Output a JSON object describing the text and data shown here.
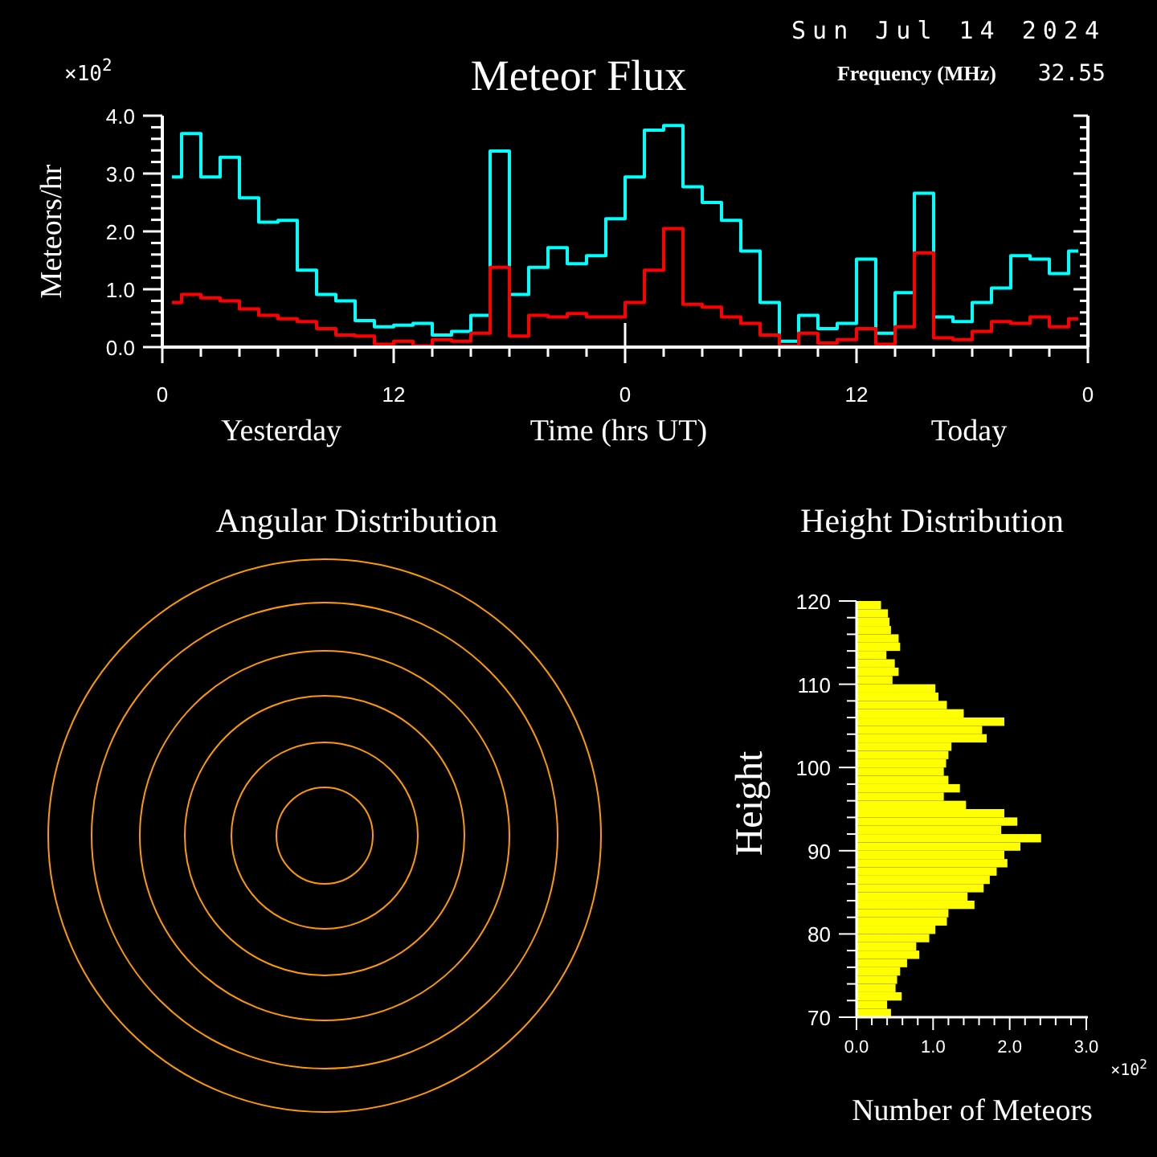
{
  "chart_data": [
    {
      "type": "step",
      "title": "Meteor Flux",
      "xlabel": "Time (hrs UT)",
      "ylabel": "Meteors/hr",
      "annotations": [
        "×10$^{2}$",
        "Sun Jul 14 2024",
        "Frequency (MHz)",
        "32.55",
        "Yesterday",
        "Today"
      ],
      "x": [
        "2024-07-13T00:30",
        "2024-07-13T01:30",
        "2024-07-13T02:30",
        "2024-07-13T03:30",
        "2024-07-13T04:30",
        "2024-07-13T05:30",
        "2024-07-13T06:30",
        "2024-07-13T07:30",
        "2024-07-13T08:30",
        "2024-07-13T09:30",
        "2024-07-13T10:30",
        "2024-07-13T11:30",
        "2024-07-13T12:30",
        "2024-07-13T13:30",
        "2024-07-13T14:30",
        "2024-07-13T15:30",
        "2024-07-13T16:30",
        "2024-07-13T17:30",
        "2024-07-13T18:30",
        "2024-07-13T19:30",
        "2024-07-13T20:30",
        "2024-07-13T21:30",
        "2024-07-13T22:30",
        "2024-07-13T23:30",
        "2024-07-14T00:30",
        "2024-07-14T01:30",
        "2024-07-14T02:30",
        "2024-07-14T03:30",
        "2024-07-14T04:30",
        "2024-07-14T05:30",
        "2024-07-14T06:30",
        "2024-07-14T07:30",
        "2024-07-14T08:30",
        "2024-07-14T09:30",
        "2024-07-14T10:30",
        "2024-07-14T11:30",
        "2024-07-14T12:30",
        "2024-07-14T13:30",
        "2024-07-14T14:30",
        "2024-07-14T15:30",
        "2024-07-14T16:30",
        "2024-07-14T17:30",
        "2024-07-14T18:30",
        "2024-07-14T19:30",
        "2024-07-14T20:30",
        "2024-07-14T21:30",
        "2024-07-14T22:30",
        "2024-07-14T23:30"
      ],
      "series": [
        {
          "color": "#00ffff",
          "values": [
            2.94,
            3.69,
            2.94,
            3.28,
            2.58,
            2.16,
            2.19,
            1.33,
            0.91,
            0.8,
            0.46,
            0.35,
            0.38,
            0.41,
            0.21,
            0.27,
            0.55,
            3.39,
            0.91,
            1.38,
            1.72,
            1.44,
            1.58,
            2.22,
            2.94,
            3.75,
            3.83,
            2.77,
            2.5,
            2.19,
            1.66,
            0.77,
            0.1,
            0.55,
            0.32,
            0.41,
            1.52,
            0.24,
            0.94,
            2.66,
            0.52,
            0.44,
            0.77,
            1.02,
            1.58,
            1.52,
            1.27,
            1.66
          ]
        },
        {
          "color": "#ff0000",
          "values": [
            0.77,
            0.91,
            0.85,
            0.8,
            0.66,
            0.55,
            0.49,
            0.44,
            0.32,
            0.21,
            0.19,
            0.05,
            0.1,
            0.02,
            0.13,
            0.1,
            0.24,
            1.38,
            0.19,
            0.55,
            0.52,
            0.58,
            0.52,
            0.52,
            0.77,
            1.33,
            2.05,
            0.74,
            0.69,
            0.52,
            0.41,
            0.21,
            0.02,
            0.24,
            0.07,
            0.13,
            0.32,
            0.05,
            0.35,
            1.63,
            0.16,
            0.13,
            0.27,
            0.44,
            0.41,
            0.52,
            0.35,
            0.49
          ]
        }
      ],
      "xlim": [
        "2024-07-13T00:00",
        "2024-07-15T00:00"
      ],
      "xticks": [
        {
          "value": "2024-07-13T00:00",
          "label": "0"
        },
        {
          "value": "2024-07-13T02:00",
          "label": null
        },
        {
          "value": "2024-07-13T04:00",
          "label": null
        },
        {
          "value": "2024-07-13T06:00",
          "label": null
        },
        {
          "value": "2024-07-13T08:00",
          "label": null
        },
        {
          "value": "2024-07-13T10:00",
          "label": null
        },
        {
          "value": "2024-07-13T12:00",
          "label": "12"
        },
        {
          "value": "2024-07-13T14:00",
          "label": null
        },
        {
          "value": "2024-07-13T16:00",
          "label": null
        },
        {
          "value": "2024-07-13T18:00",
          "label": null
        },
        {
          "value": "2024-07-13T20:00",
          "label": null
        },
        {
          "value": "2024-07-13T22:00",
          "label": null
        },
        {
          "value": "2024-07-14T00:00",
          "label": "0"
        },
        {
          "value": "2024-07-14T02:00",
          "label": null
        },
        {
          "value": "2024-07-14T04:00",
          "label": null
        },
        {
          "value": "2024-07-14T06:00",
          "label": null
        },
        {
          "value": "2024-07-14T08:00",
          "label": null
        },
        {
          "value": "2024-07-14T10:00",
          "label": null
        },
        {
          "value": "2024-07-14T12:00",
          "label": "12"
        },
        {
          "value": "2024-07-14T14:00",
          "label": null
        },
        {
          "value": "2024-07-14T16:00",
          "label": null
        },
        {
          "value": "2024-07-14T18:00",
          "label": null
        },
        {
          "value": "2024-07-14T20:00",
          "label": null
        },
        {
          "value": "2024-07-14T22:00",
          "label": null
        },
        {
          "value": "2024-07-15T00:00",
          "label": "0"
        }
      ],
      "ylim": [
        0,
        4
      ],
      "yticks": [
        {
          "value": 0,
          "label": "0.0"
        },
        {
          "value": 0.2,
          "label": null
        },
        {
          "value": 0.4,
          "label": null
        },
        {
          "value": 0.6,
          "label": null
        },
        {
          "value": 0.8,
          "label": null
        },
        {
          "value": 1,
          "label": "1.0"
        },
        {
          "value": 1.2,
          "label": null
        },
        {
          "value": 1.4,
          "label": null
        },
        {
          "value": 1.6,
          "label": null
        },
        {
          "value": 1.8,
          "label": null
        },
        {
          "value": 2,
          "label": "2.0"
        },
        {
          "value": 2.2,
          "label": null
        },
        {
          "value": 2.4,
          "label": null
        },
        {
          "value": 2.6,
          "label": null
        },
        {
          "value": 2.8,
          "label": null
        },
        {
          "value": 3,
          "label": "3.0"
        },
        {
          "value": 3.2,
          "label": null
        },
        {
          "value": 3.4,
          "label": null
        },
        {
          "value": 3.6,
          "label": null
        },
        {
          "value": 3.8,
          "label": null
        },
        {
          "value": 4,
          "label": "4.0"
        }
      ],
      "ref_lines": [
        {
          "axis": "x",
          "value": "2024-07-14T00:00",
          "color": "#ffffff"
        }
      ]
    },
    {
      "type": "other",
      "title": "Angular Distribution"
    },
    {
      "type": "histogram",
      "orientation": "horizontal",
      "title": "Height Distribution",
      "xlabel": "Number of Meteors",
      "ylabel": "Height",
      "color": "#ffff00",
      "annotations": [
        "×10$^{2}$"
      ],
      "bins": [
        70,
        71,
        72,
        73,
        74,
        75,
        76,
        77,
        78,
        79,
        80,
        81,
        82,
        83,
        84,
        85,
        86,
        87,
        88,
        89,
        90,
        91,
        92,
        93,
        94,
        95,
        96,
        97,
        98,
        99,
        100,
        101,
        102,
        103,
        104,
        105,
        106,
        107,
        108,
        109,
        110,
        111,
        112,
        113,
        114,
        115,
        116,
        117,
        118,
        119,
        120
      ],
      "values": [
        0.45,
        0.4,
        0.59,
        0.51,
        0.53,
        0.57,
        0.66,
        0.82,
        0.78,
        0.95,
        1.03,
        1.18,
        1.2,
        1.54,
        1.45,
        1.66,
        1.74,
        1.83,
        1.97,
        1.93,
        2.14,
        2.41,
        1.89,
        2.1,
        1.93,
        1.43,
        1.14,
        1.35,
        1.2,
        1.14,
        1.17,
        1.2,
        1.24,
        1.7,
        1.64,
        1.93,
        1.4,
        1.18,
        1.07,
        1.03,
        0.47,
        0.55,
        0.5,
        0.39,
        0.57,
        0.55,
        0.45,
        0.43,
        0.41,
        0.32
      ],
      "xlim": [
        0,
        3
      ],
      "xticks": [
        {
          "value": 0,
          "label": "0.0"
        },
        {
          "value": 0.2,
          "label": null
        },
        {
          "value": 0.4,
          "label": null
        },
        {
          "value": 0.6,
          "label": null
        },
        {
          "value": 0.8,
          "label": null
        },
        {
          "value": 1,
          "label": "1.0"
        },
        {
          "value": 1.2,
          "label": null
        },
        {
          "value": 1.4,
          "label": null
        },
        {
          "value": 1.6,
          "label": null
        },
        {
          "value": 1.8,
          "label": null
        },
        {
          "value": 2,
          "label": "2.0"
        },
        {
          "value": 2.2,
          "label": null
        },
        {
          "value": 2.4,
          "label": null
        },
        {
          "value": 2.6,
          "label": null
        },
        {
          "value": 2.8,
          "label": null
        },
        {
          "value": 3,
          "label": "3.0"
        }
      ],
      "ylim": [
        70,
        120
      ],
      "yticks": [
        70,
        {
          "value": 72,
          "label": null
        },
        {
          "value": 74,
          "label": null
        },
        {
          "value": 76,
          "label": null
        },
        {
          "value": 78,
          "label": null
        },
        80,
        {
          "value": 82,
          "label": null
        },
        {
          "value": 84,
          "label": null
        },
        {
          "value": 86,
          "label": null
        },
        {
          "value": 88,
          "label": null
        },
        90,
        {
          "value": 92,
          "label": null
        },
        {
          "value": 94,
          "label": null
        },
        {
          "value": 96,
          "label": null
        },
        {
          "value": 98,
          "label": null
        },
        100,
        {
          "value": 102,
          "label": null
        },
        {
          "value": 104,
          "label": null
        },
        {
          "value": 106,
          "label": null
        },
        {
          "value": 108,
          "label": null
        },
        110,
        {
          "value": 112,
          "label": null
        },
        {
          "value": 114,
          "label": null
        },
        {
          "value": 116,
          "label": null
        },
        {
          "value": 118,
          "label": null
        },
        120
      ]
    }
  ]
}
